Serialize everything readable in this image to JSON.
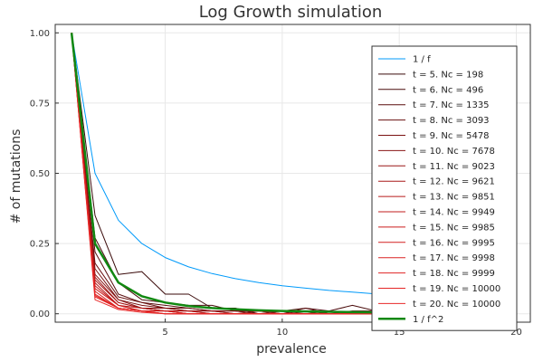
{
  "chart_data": {
    "type": "line",
    "title": "Log Growth simulation",
    "xlabel": "prevalence",
    "ylabel": "# of mutations",
    "xlim": [
      0.3,
      20.6
    ],
    "ylim": [
      -0.03,
      1.03
    ],
    "xticks": [
      5,
      10,
      15,
      20
    ],
    "yticks": [
      0.0,
      0.25,
      0.5,
      0.75,
      1.0
    ],
    "ytick_labels": [
      "0.00",
      "0.25",
      "0.50",
      "0.75",
      "1.00"
    ],
    "grid": true,
    "legend_position": "top-right",
    "x": [
      1,
      2,
      3,
      4,
      5,
      6,
      7,
      8,
      9,
      10,
      11,
      12,
      13,
      14,
      15,
      16,
      17,
      18,
      19,
      20
    ],
    "series": [
      {
        "name": "1  / f",
        "color": "#009AFA",
        "width": 1,
        "values": [
          1.0,
          0.5,
          0.333,
          0.25,
          0.2,
          0.167,
          0.143,
          0.125,
          0.111,
          0.1,
          0.091,
          0.083,
          0.077,
          0.071,
          0.067,
          0.0625,
          0.059,
          0.056,
          0.053,
          0.05
        ]
      },
      {
        "name": "t = 5. Nc = 198",
        "color": "#3A0A0A",
        "width": 1,
        "values": [
          1.0,
          0.35,
          0.14,
          0.15,
          0.07,
          0.07,
          0.02,
          0.02,
          0.0,
          0.0,
          0.0,
          0.0,
          0.0,
          0.0,
          0.0,
          0.0,
          0.0,
          0.0,
          0.0,
          0.0
        ]
      },
      {
        "name": "t = 6. Nc = 496",
        "color": "#4A0C0C",
        "width": 1,
        "values": [
          1.0,
          0.27,
          0.11,
          0.05,
          0.04,
          0.03,
          0.03,
          0.01,
          0.01,
          0.01,
          0.02,
          0.01,
          0.03,
          0.01,
          0.01,
          0.0,
          0.01,
          0.0,
          0.0,
          0.0
        ]
      },
      {
        "name": "t = 7. Nc = 1335",
        "color": "#5A0E0E",
        "width": 1,
        "values": [
          1.0,
          0.22,
          0.07,
          0.04,
          0.03,
          0.02,
          0.01,
          0.01,
          0.01,
          0.0,
          0.02,
          0.0,
          0.01,
          0.01,
          0.0,
          0.01,
          0.0,
          0.01,
          0.0,
          0.0
        ]
      },
      {
        "name": "t = 8. Nc = 3093",
        "color": "#6A1010",
        "width": 1,
        "values": [
          1.0,
          0.18,
          0.06,
          0.04,
          0.02,
          0.02,
          0.01,
          0.01,
          0.0,
          0.01,
          0.0,
          0.01,
          0.0,
          0.01,
          0.0,
          0.0,
          0.0,
          0.02,
          0.0,
          0.0
        ]
      },
      {
        "name": "t = 9. Nc = 5478",
        "color": "#7A1212",
        "width": 1,
        "values": [
          1.0,
          0.16,
          0.05,
          0.03,
          0.02,
          0.01,
          0.01,
          0.01,
          0.0,
          0.0,
          0.01,
          0.0,
          0.0,
          0.0,
          0.01,
          0.0,
          0.0,
          0.0,
          0.01,
          0.0
        ]
      },
      {
        "name": "t = 10. Nc = 7678",
        "color": "#8A1414",
        "width": 1,
        "values": [
          1.0,
          0.14,
          0.05,
          0.02,
          0.02,
          0.01,
          0.01,
          0.0,
          0.01,
          0.0,
          0.0,
          0.0,
          0.0,
          0.0,
          0.0,
          0.01,
          0.0,
          0.0,
          0.0,
          0.0
        ]
      },
      {
        "name": "t = 11. Nc = 9023",
        "color": "#9A1616",
        "width": 1,
        "values": [
          1.0,
          0.13,
          0.04,
          0.02,
          0.01,
          0.01,
          0.01,
          0.0,
          0.0,
          0.0,
          0.0,
          0.0,
          0.0,
          0.0,
          0.0,
          0.0,
          0.0,
          0.0,
          0.0,
          0.0
        ]
      },
      {
        "name": "t = 12. Nc = 9621",
        "color": "#A81818",
        "width": 1,
        "values": [
          1.0,
          0.12,
          0.04,
          0.02,
          0.01,
          0.01,
          0.0,
          0.0,
          0.0,
          0.0,
          0.0,
          0.0,
          0.0,
          0.0,
          0.0,
          0.0,
          0.0,
          0.0,
          0.0,
          0.0
        ]
      },
      {
        "name": "t = 13. Nc = 9851",
        "color": "#B61A1A",
        "width": 1,
        "values": [
          1.0,
          0.11,
          0.03,
          0.02,
          0.01,
          0.01,
          0.0,
          0.0,
          0.0,
          0.0,
          0.0,
          0.0,
          0.0,
          0.0,
          0.0,
          0.0,
          0.0,
          0.0,
          0.0,
          0.0
        ]
      },
      {
        "name": "t = 14. Nc = 9949",
        "color": "#C21C1C",
        "width": 1,
        "values": [
          1.0,
          0.1,
          0.03,
          0.01,
          0.01,
          0.0,
          0.0,
          0.0,
          0.0,
          0.0,
          0.0,
          0.0,
          0.0,
          0.0,
          0.0,
          0.0,
          0.0,
          0.0,
          0.0,
          0.0
        ]
      },
      {
        "name": "t = 15. Nc = 9985",
        "color": "#CC1E1E",
        "width": 1,
        "values": [
          1.0,
          0.09,
          0.03,
          0.01,
          0.01,
          0.0,
          0.0,
          0.0,
          0.0,
          0.0,
          0.0,
          0.0,
          0.0,
          0.0,
          0.0,
          0.0,
          0.0,
          0.0,
          0.0,
          0.0
        ]
      },
      {
        "name": "t = 16. Nc = 9995",
        "color": "#D42020",
        "width": 1,
        "values": [
          1.0,
          0.08,
          0.02,
          0.01,
          0.01,
          0.0,
          0.0,
          0.0,
          0.0,
          0.0,
          0.0,
          0.0,
          0.0,
          0.0,
          0.0,
          0.0,
          0.0,
          0.0,
          0.0,
          0.0
        ]
      },
      {
        "name": "t = 17. Nc = 9998",
        "color": "#DA2222",
        "width": 1,
        "values": [
          1.0,
          0.07,
          0.02,
          0.01,
          0.0,
          0.0,
          0.0,
          0.0,
          0.0,
          0.0,
          0.0,
          0.0,
          0.0,
          0.0,
          0.0,
          0.0,
          0.0,
          0.0,
          0.0,
          0.0
        ]
      },
      {
        "name": "t = 18. Nc = 9999",
        "color": "#E02424",
        "width": 1,
        "values": [
          1.0,
          0.065,
          0.02,
          0.01,
          0.0,
          0.0,
          0.0,
          0.0,
          0.0,
          0.0,
          0.0,
          0.0,
          0.0,
          0.0,
          0.0,
          0.0,
          0.0,
          0.0,
          0.0,
          0.0
        ]
      },
      {
        "name": "t = 19. Nc = 10000",
        "color": "#E42626",
        "width": 1,
        "values": [
          1.0,
          0.06,
          0.02,
          0.01,
          0.0,
          0.0,
          0.0,
          0.0,
          0.0,
          0.0,
          0.0,
          0.0,
          0.0,
          0.0,
          0.0,
          0.0,
          0.0,
          0.0,
          0.0,
          0.0
        ]
      },
      {
        "name": "t = 20. Nc = 10000",
        "color": "#E82828",
        "width": 1,
        "values": [
          1.0,
          0.05,
          0.015,
          0.005,
          0.0,
          0.0,
          0.0,
          0.0,
          0.0,
          0.0,
          0.0,
          0.0,
          0.0,
          0.0,
          0.0,
          0.0,
          0.0,
          0.0,
          0.0,
          0.0
        ]
      },
      {
        "name": "1  / f^2",
        "color": "#118811",
        "width": 2.5,
        "values": [
          1.0,
          0.25,
          0.111,
          0.0625,
          0.04,
          0.0278,
          0.0204,
          0.0156,
          0.0123,
          0.01,
          0.0083,
          0.0069,
          0.0059,
          0.0051,
          0.0044,
          0.0039,
          0.0035,
          0.0031,
          0.0028,
          0.0025
        ]
      }
    ]
  }
}
